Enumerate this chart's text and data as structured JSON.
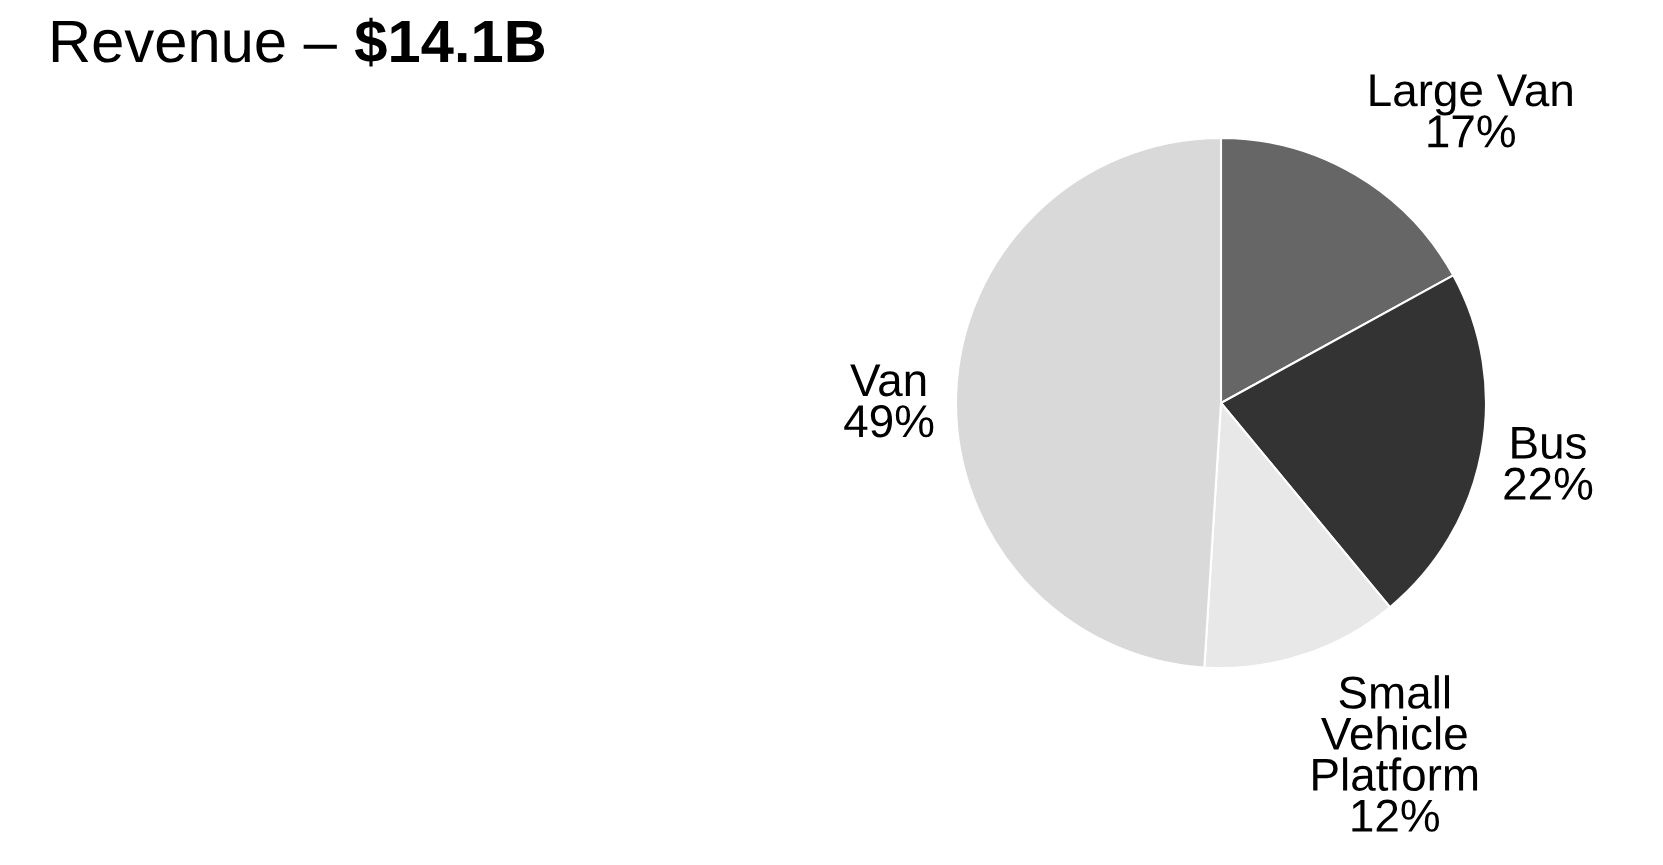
{
  "chart_data": {
    "type": "pie",
    "title": "Revenue – $14.1B",
    "categories": [
      "Large Van",
      "Bus",
      "Small\nVehicle\nPlatform",
      "Van"
    ],
    "values": [
      17,
      22,
      12,
      49
    ],
    "colors": [
      "#666666",
      "#333333",
      "#e8e8e8",
      "#d9d9d9"
    ],
    "value_labels": [
      "17%",
      "22%",
      "12%",
      "49%"
    ]
  }
}
